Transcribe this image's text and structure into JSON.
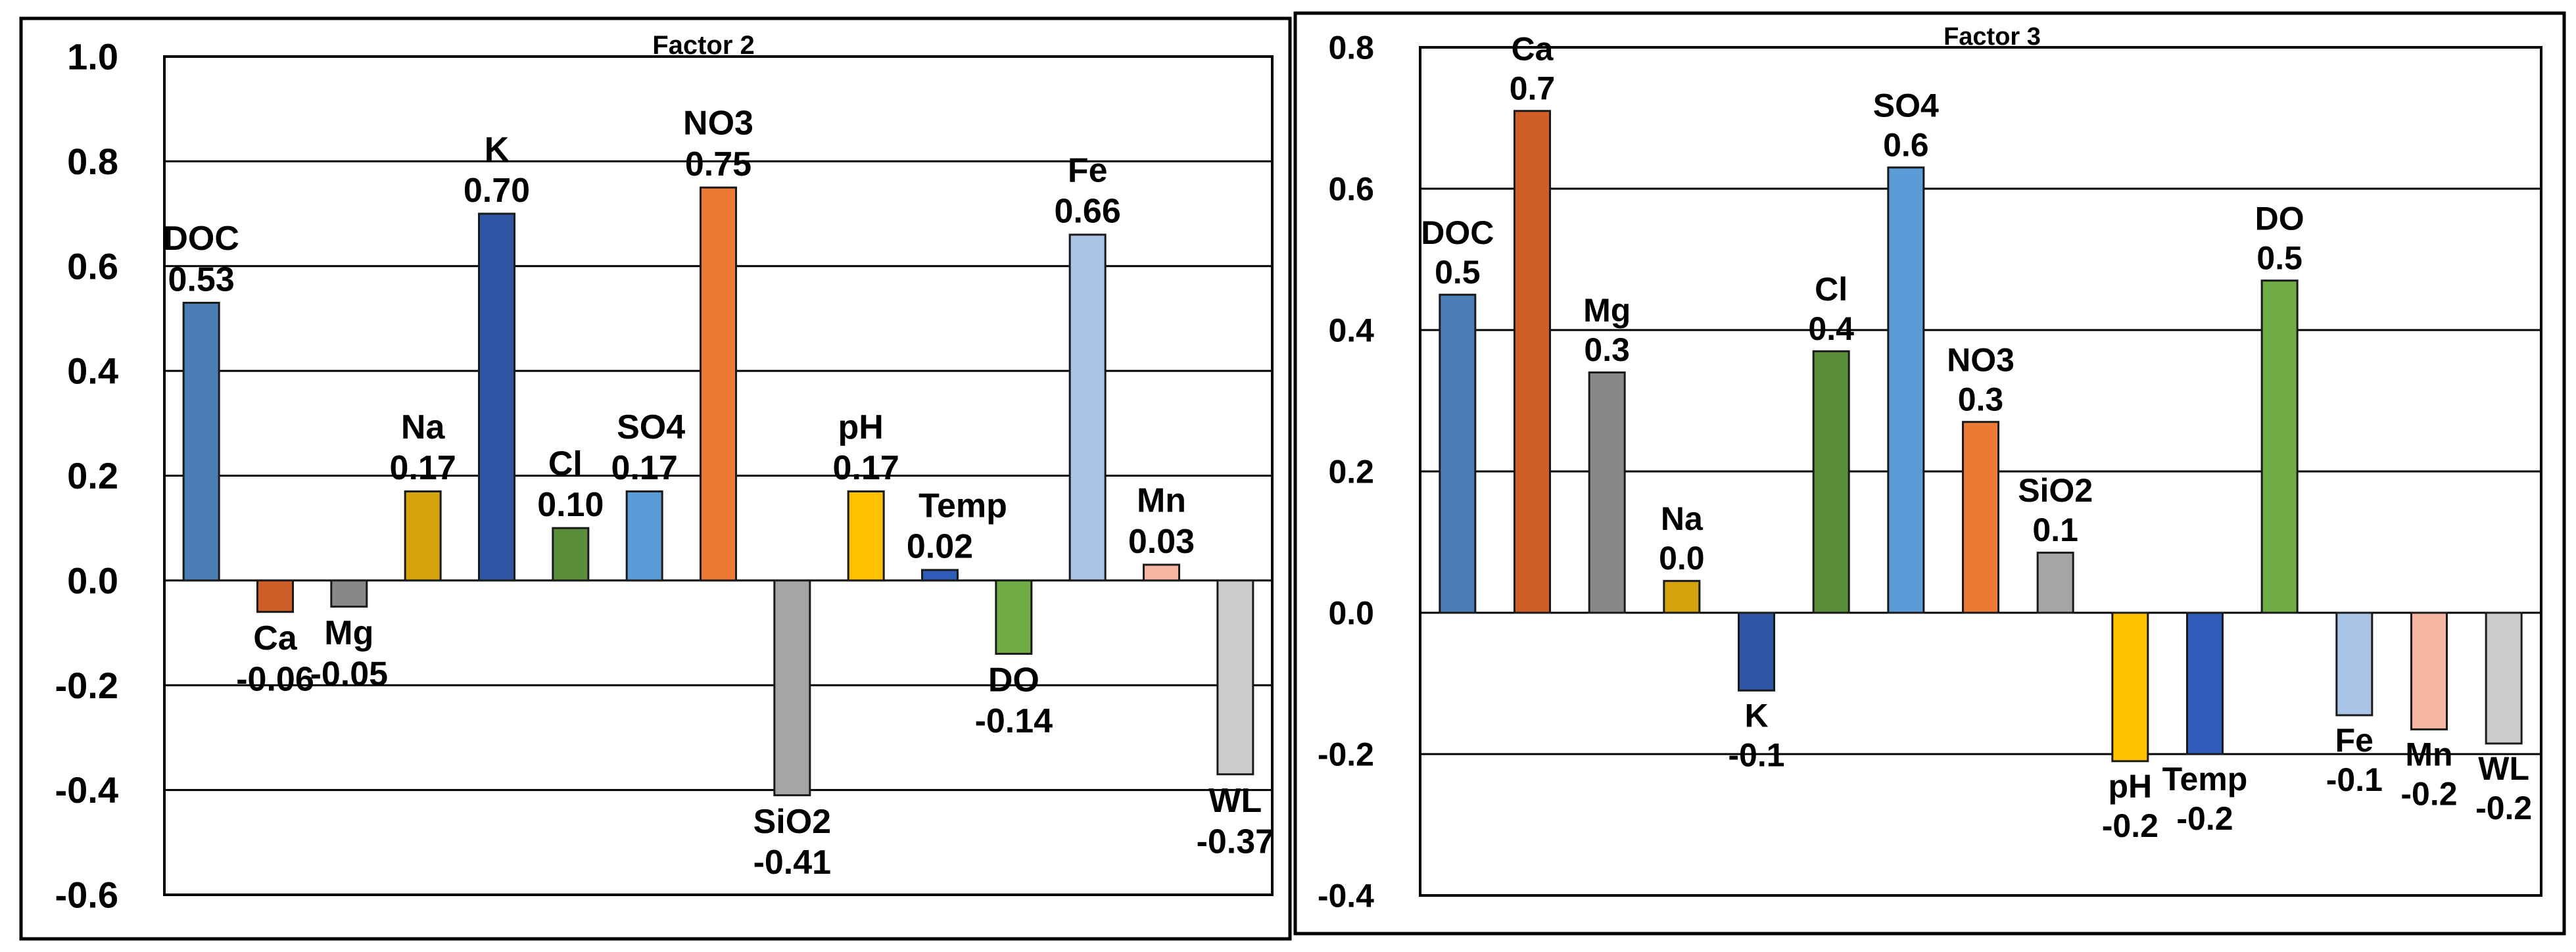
{
  "chart_data": [
    {
      "type": "bar",
      "title": "Factor 2",
      "xlabel": "",
      "ylabel": "",
      "ylim": [
        -0.6,
        1.0
      ],
      "yticks": [
        -0.6,
        -0.4,
        -0.2,
        0.0,
        0.2,
        0.4,
        0.6,
        0.8,
        1.0
      ],
      "ytick_labels": [
        "-0.6",
        "-0.4",
        "-0.2",
        "0.0",
        "0.2",
        "0.4",
        "0.6",
        "0.8",
        "1.0"
      ],
      "grid": true,
      "categories": [
        "DOC",
        "Ca",
        "Mg",
        "Na",
        "K",
        "Cl",
        "SO4",
        "NO3",
        "SiO2",
        "pH",
        "Temp",
        "DO",
        "Fe",
        "Mn",
        "WL"
      ],
      "values": [
        0.53,
        -0.06,
        -0.05,
        0.17,
        0.7,
        0.1,
        0.17,
        0.75,
        -0.41,
        0.17,
        0.02,
        -0.14,
        0.66,
        0.03,
        -0.37
      ],
      "value_labels": [
        "0.53",
        "-0.06",
        "-0.05",
        "0.17",
        "0.70",
        "0.10",
        "0.17",
        "0.75",
        "-0.41",
        "0.17",
        "0.02",
        "-0.14",
        "0.66",
        "0.03",
        "-0.37"
      ],
      "colors": [
        "#4a7eb5",
        "#cf5f27",
        "#888888",
        "#d4a20c",
        "#2e55a3",
        "#5a8e3a",
        "#5b9bd8",
        "#ec7a35",
        "#a5a5a5",
        "#ffc000",
        "#2e5cb8",
        "#70ad47",
        "#a9c4e6",
        "#f4b6a2",
        "#cccccc"
      ]
    },
    {
      "type": "bar",
      "title": "Factor 3",
      "xlabel": "",
      "ylabel": "",
      "ylim": [
        -0.4,
        0.8
      ],
      "yticks": [
        -0.4,
        -0.2,
        0.0,
        0.2,
        0.4,
        0.6,
        0.8
      ],
      "ytick_labels": [
        "-0.4",
        "-0.2",
        "0.0",
        "0.2",
        "0.4",
        "0.6",
        "0.8"
      ],
      "grid": true,
      "categories": [
        "DOC",
        "Ca",
        "Mg",
        "Na",
        "K",
        "Cl",
        "SO4",
        "NO3",
        "SiO2",
        "pH",
        "Temp",
        "DO",
        "Fe",
        "Mn",
        "WL"
      ],
      "values": [
        0.45,
        0.71,
        0.34,
        0.045,
        -0.11,
        0.37,
        0.63,
        0.27,
        0.085,
        -0.21,
        -0.2,
        0.47,
        -0.145,
        -0.165,
        -0.185
      ],
      "value_labels": [
        "0.5",
        "0.7",
        "0.3",
        "0.0",
        "-0.1",
        "0.4",
        "0.6",
        "0.3",
        "0.1",
        "-0.2",
        "-0.2",
        "0.5",
        "-0.1",
        "-0.2",
        "-0.2"
      ],
      "colors": [
        "#4a7eb5",
        "#cf5f27",
        "#888888",
        "#d4a20c",
        "#2e55a3",
        "#5a8e3a",
        "#5b9bd8",
        "#ec7a35",
        "#a5a5a5",
        "#ffc000",
        "#2e5cb8",
        "#70ad47",
        "#a9c4e6",
        "#f4b6a2",
        "#cccccc"
      ]
    }
  ]
}
